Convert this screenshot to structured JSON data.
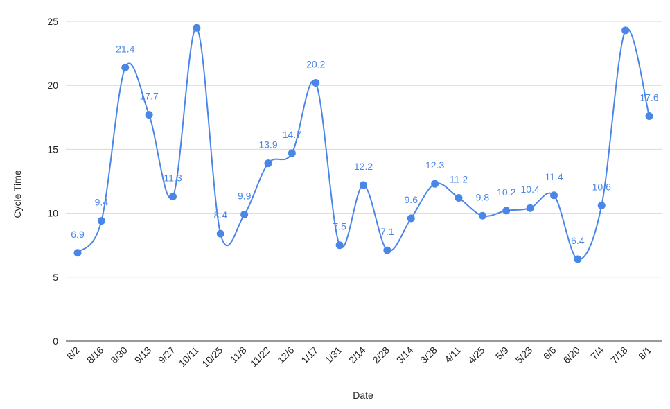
{
  "chart_data": {
    "type": "line",
    "title": "",
    "xlabel": "Date",
    "ylabel": "Cycle Time",
    "ylim": [
      0,
      25
    ],
    "yticks": [
      0,
      5,
      10,
      15,
      20,
      25
    ],
    "grid": true,
    "smooth": true,
    "color": "#4a86e8",
    "categories": [
      "8/2",
      "8/16",
      "8/30",
      "9/13",
      "9/27",
      "10/11",
      "10/25",
      "11/8",
      "11/22",
      "12/6",
      "1/17",
      "1/31",
      "2/14",
      "2/28",
      "3/14",
      "3/28",
      "4/11",
      "4/25",
      "5/9",
      "5/23",
      "6/6",
      "6/20",
      "7/4",
      "7/18",
      "8/1"
    ],
    "values": [
      6.9,
      9.4,
      21.4,
      17.7,
      11.3,
      24.5,
      8.4,
      9.9,
      13.9,
      14.7,
      20.2,
      7.5,
      12.2,
      7.1,
      9.6,
      12.3,
      11.2,
      9.8,
      10.2,
      10.4,
      11.4,
      6.4,
      10.6,
      24.3,
      17.6
    ],
    "data_labels": [
      "6.9",
      "9.4",
      "21.4",
      "17.7",
      "11.3",
      "",
      "8.4",
      "9.9",
      "13.9",
      "14.7",
      "20.2",
      "7.5",
      "12.2",
      "7.1",
      "9.6",
      "12.3",
      "11.2",
      "9.8",
      "10.2",
      "10.4",
      "11.4",
      "6.4",
      "10.6",
      "",
      "17.6"
    ]
  }
}
